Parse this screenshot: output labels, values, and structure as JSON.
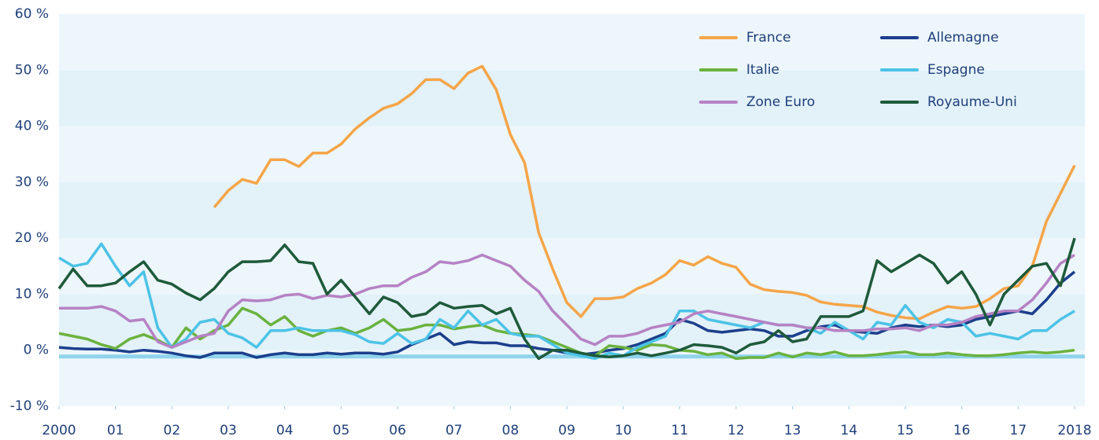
{
  "chart_data": {
    "type": "line",
    "x": [
      2000,
      2000.25,
      2000.5,
      2000.75,
      2001,
      2001.25,
      2001.5,
      2001.75,
      2002,
      2002.25,
      2002.5,
      2002.75,
      2003,
      2003.25,
      2003.5,
      2003.75,
      2004,
      2004.25,
      2004.5,
      2004.75,
      2005,
      2005.25,
      2005.5,
      2005.75,
      2006,
      2006.25,
      2006.5,
      2006.75,
      2007,
      2007.25,
      2007.5,
      2007.75,
      2008,
      2008.25,
      2008.5,
      2008.75,
      2009,
      2009.25,
      2009.5,
      2009.75,
      2010,
      2010.25,
      2010.5,
      2010.75,
      2011,
      2011.25,
      2011.5,
      2011.75,
      2012,
      2012.25,
      2012.5,
      2012.75,
      2013,
      2013.25,
      2013.5,
      2013.75,
      2014,
      2014.25,
      2014.5,
      2014.75,
      2015,
      2015.25,
      2015.5,
      2015.75,
      2016,
      2016.25,
      2016.5,
      2016.75,
      2017,
      2017.25,
      2017.5,
      2017.75,
      2018
    ],
    "series": [
      {
        "name": "France",
        "color": "#f5a548",
        "values": [
          null,
          null,
          null,
          null,
          null,
          null,
          null,
          null,
          null,
          null,
          null,
          25.5,
          28.5,
          30.5,
          29.8,
          34,
          34,
          32.8,
          35.2,
          35.2,
          36.8,
          39.5,
          41.5,
          43.2,
          44,
          45.8,
          48.3,
          48.3,
          46.7,
          49.5,
          50.7,
          46.5,
          38.5,
          33.5,
          21,
          14.5,
          8.5,
          6,
          9.2,
          9.2,
          9.5,
          11,
          12,
          13.5,
          16,
          15.2,
          16.7,
          15.5,
          14.8,
          11.8,
          10.8,
          10.5,
          10.3,
          9.8,
          8.6,
          8.2,
          8,
          7.8,
          6.8,
          6.2,
          5.8,
          5.6,
          6.8,
          7.8,
          7.5,
          7.8,
          9.2,
          11,
          11.5,
          15,
          23,
          28,
          33
        ]
      },
      {
        "name": "Allemagne",
        "color": "#1c3f8c",
        "values": [
          0.5,
          0.3,
          0.2,
          0.2,
          0,
          -0.3,
          0,
          -0.2,
          -0.5,
          -1,
          -1.3,
          -0.5,
          -0.5,
          -0.5,
          -1.3,
          -0.8,
          -0.5,
          -0.8,
          -0.8,
          -0.5,
          -0.7,
          -0.5,
          -0.5,
          -0.7,
          -0.3,
          1,
          2,
          3,
          1,
          1.5,
          1.3,
          1.3,
          0.8,
          0.8,
          0.3,
          0,
          -0.5,
          -0.8,
          -0.5,
          0,
          0.3,
          1,
          2,
          3,
          5.5,
          4.8,
          3.5,
          3.2,
          3.5,
          3.8,
          3.5,
          2.5,
          2.5,
          3.5,
          4.2,
          4.5,
          3.5,
          3.2,
          3,
          4,
          4.5,
          4.2,
          4.5,
          4.2,
          4.5,
          5.5,
          6,
          6.5,
          7,
          6.5,
          9,
          12,
          14
        ]
      },
      {
        "name": "Italie",
        "color": "#6ab23e",
        "values": [
          3,
          2.5,
          2,
          1,
          0.3,
          2,
          2.8,
          1.8,
          0.5,
          4,
          2,
          3.5,
          4.5,
          7.5,
          6.5,
          4.5,
          6,
          3.5,
          2.5,
          3.5,
          4,
          3,
          4,
          5.5,
          3.5,
          3.8,
          4.5,
          4.5,
          3.8,
          4.2,
          4.5,
          3.5,
          3,
          2.8,
          2.5,
          1.5,
          0.5,
          -0.5,
          -1,
          0.8,
          0.5,
          0,
          1,
          0.8,
          0,
          -0.2,
          -0.8,
          -0.5,
          -1.5,
          -1.3,
          -1.3,
          -0.5,
          -1.2,
          -0.5,
          -0.8,
          -0.3,
          -1,
          -1,
          -0.8,
          -0.5,
          -0.3,
          -0.8,
          -0.8,
          -0.5,
          -0.8,
          -1,
          -1,
          -0.8,
          -0.5,
          -0.3,
          -0.5,
          -0.3,
          0
        ]
      },
      {
        "name": "Espagne",
        "color": "#4cc3e6",
        "values": [
          16.5,
          15,
          15.5,
          19,
          15,
          11.5,
          14,
          4,
          0.5,
          2,
          5,
          5.5,
          3,
          2.2,
          0.5,
          3.5,
          3.5,
          4,
          3.5,
          3.5,
          3.5,
          2.8,
          1.5,
          1.2,
          3,
          1.2,
          2,
          5.5,
          4,
          7,
          4.5,
          5.5,
          3,
          2.5,
          2.5,
          1,
          -0.5,
          -1,
          -1.5,
          -0.5,
          -1,
          0.5,
          1.5,
          2.5,
          7,
          7,
          5.5,
          5,
          4.5,
          4,
          5,
          4.5,
          4.5,
          4,
          3,
          5,
          3.5,
          2,
          5,
          4.5,
          8,
          5,
          4,
          5.5,
          5,
          2.5,
          3,
          2.5,
          2,
          3.5,
          3.5,
          5.5,
          7
        ]
      },
      {
        "name": "Zone Euro",
        "color": "#b682c4",
        "values": [
          7.5,
          7.5,
          7.5,
          7.8,
          7,
          5.2,
          5.5,
          1.5,
          0.5,
          1.5,
          2.5,
          3,
          7,
          9,
          8.8,
          9,
          9.8,
          10,
          9.2,
          9.8,
          9.5,
          10,
          11,
          11.5,
          11.5,
          13,
          14,
          15.8,
          15.5,
          16,
          17,
          16,
          15,
          12.5,
          10.5,
          7,
          4.5,
          2,
          1,
          2.5,
          2.5,
          3,
          4,
          4.5,
          5,
          6.5,
          7,
          6.5,
          6,
          5.5,
          5,
          4.5,
          4.5,
          4,
          4,
          3.5,
          3.5,
          3.5,
          3.8,
          3.8,
          4,
          3.5,
          4.5,
          4.5,
          5,
          6,
          6.5,
          7,
          7,
          9,
          12,
          15.5,
          17
        ]
      },
      {
        "name": "Royaume-Uni",
        "color": "#1e5a3a",
        "values": [
          11,
          14.5,
          11.5,
          11.5,
          12,
          14,
          15.8,
          12.5,
          11.8,
          10.2,
          9,
          11,
          14,
          15.8,
          15.8,
          16,
          18.8,
          15.8,
          15.5,
          10,
          12.5,
          9.5,
          6.5,
          9.5,
          8.5,
          6,
          6.5,
          8.5,
          7.5,
          7.8,
          8,
          6.5,
          7.5,
          2,
          -1.5,
          0,
          0,
          -0.5,
          -1,
          -1.2,
          -1,
          -0.5,
          -1,
          -0.5,
          0,
          1,
          0.8,
          0.5,
          -0.5,
          1,
          1.5,
          3.5,
          1.5,
          2,
          6,
          6,
          6,
          7,
          16,
          14,
          15.5,
          17,
          15.5,
          12,
          14,
          10,
          4.5,
          10,
          12.5,
          15,
          15.5,
          11.5,
          20
        ]
      }
    ],
    "xlim": [
      2000,
      2018
    ],
    "xticks": [
      2000,
      {
        "value": 2001,
        "label": "01"
      },
      {
        "value": 2002,
        "label": "02"
      },
      {
        "value": 2003,
        "label": "03"
      },
      {
        "value": 2004,
        "label": "04"
      },
      {
        "value": 2005,
        "label": "05"
      },
      {
        "value": 2006,
        "label": "06"
      },
      {
        "value": 2007,
        "label": "07"
      },
      {
        "value": 2008,
        "label": "08"
      },
      {
        "value": 2009,
        "label": "09"
      },
      {
        "value": 2010,
        "label": "10"
      },
      {
        "value": 2011,
        "label": "11"
      },
      {
        "value": 2012,
        "label": "12"
      },
      {
        "value": 2013,
        "label": "13"
      },
      {
        "value": 2014,
        "label": "14"
      },
      {
        "value": 2015,
        "label": "15"
      },
      {
        "value": 2016,
        "label": "16"
      },
      {
        "value": 2017,
        "label": "17"
      },
      2018
    ],
    "ylim": [
      -10,
      60
    ],
    "yticks": [
      {
        "value": -10,
        "label": "-10 %"
      },
      {
        "value": 0,
        "label": "0 %"
      },
      {
        "value": 10,
        "label": "10 %"
      },
      {
        "value": 20,
        "label": "20 %"
      },
      {
        "value": 30,
        "label": "30 %"
      },
      {
        "value": 40,
        "label": "40 %"
      },
      {
        "value": 50,
        "label": "50 %"
      },
      {
        "value": 60,
        "label": "60 %"
      }
    ],
    "legend": "top-right"
  }
}
